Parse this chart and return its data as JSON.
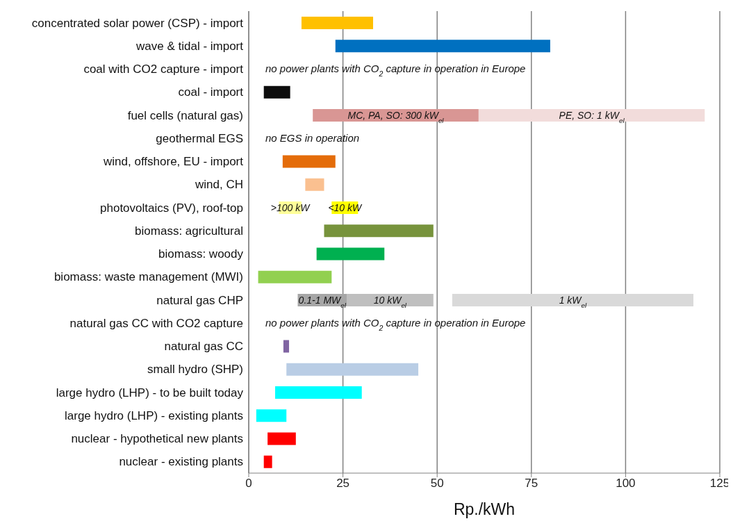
{
  "chart_data": {
    "type": "bar",
    "orientation": "horizontal",
    "xlabel": "Rp./kWh",
    "categories": [
      "concentrated solar power (CSP) - import",
      "wave & tidal - import",
      "coal with CO2 capture - import",
      "coal - import",
      "fuel cells (natural gas)",
      "geothermal EGS",
      "wind, offshore, EU - import",
      "wind, CH",
      "photovoltaics (PV), roof-top",
      "biomass: agricultural",
      "biomass: woody",
      "biomass: waste management (MWI)",
      "natural gas CHP",
      "natural gas CC with CO2 capture",
      "natural gas CC",
      "small hydro (SHP)",
      "large hydro (LHP) - to be built today",
      "large hydro (LHP) - existing plants",
      "nuclear - hypothetical new plants",
      "nuclear - existing plants"
    ],
    "series": [
      {
        "base": [
          14,
          23,
          null,
          4,
          null,
          null,
          9,
          15,
          null,
          20,
          18,
          2.5,
          null,
          null,
          9.2,
          10,
          7,
          2,
          5,
          4
        ],
        "values": [
          19,
          57,
          null,
          7,
          null,
          null,
          14,
          5,
          null,
          29,
          18,
          19.5,
          null,
          null,
          1.5,
          35,
          23,
          8,
          7.5,
          2.2
        ],
        "colors": [
          "#ffc000",
          "#0070c0",
          null,
          "#0d0d0d",
          null,
          null,
          "#e46c0a",
          "#fac090",
          null,
          "#77933c",
          "#00b050",
          "#92d050",
          null,
          null,
          "#8064a2",
          "#b9cde5",
          "#00ffff",
          "#00ffff",
          "#ff0000",
          "#ff0000"
        ]
      },
      {
        "name": "MC, PA, SO: 300 kW$_{el}$",
        "color": "#d99694",
        "base": [
          null,
          null,
          null,
          null,
          17,
          null,
          null,
          null,
          null,
          null,
          null,
          null,
          null,
          null,
          null,
          null,
          null,
          null,
          null,
          null
        ],
        "values": [
          null,
          null,
          null,
          null,
          44,
          null,
          null,
          null,
          null,
          null,
          null,
          null,
          null,
          null,
          null,
          null,
          null,
          null,
          null,
          null
        ]
      },
      {
        "name": "PE, SO: 1 kW$_{el}$",
        "color": "#f2dcdb",
        "base": [
          null,
          null,
          null,
          null,
          61,
          null,
          null,
          null,
          null,
          null,
          null,
          null,
          null,
          null,
          null,
          null,
          null,
          null,
          null,
          null
        ],
        "values": [
          null,
          null,
          null,
          null,
          60,
          null,
          null,
          null,
          null,
          null,
          null,
          null,
          null,
          null,
          null,
          null,
          null,
          null,
          null,
          null
        ]
      },
      {
        "name": ">100 kW",
        "color": "#ffff99",
        "base": [
          null,
          null,
          null,
          null,
          null,
          null,
          null,
          null,
          8,
          null,
          null,
          null,
          null,
          null,
          null,
          null,
          null,
          null,
          null,
          null
        ],
        "values": [
          null,
          null,
          null,
          null,
          null,
          null,
          null,
          null,
          6,
          null,
          null,
          null,
          null,
          null,
          null,
          null,
          null,
          null,
          null,
          null
        ]
      },
      {
        "name": "<10 kW",
        "color": "#ffff00",
        "base": [
          null,
          null,
          null,
          null,
          null,
          null,
          null,
          null,
          22,
          null,
          null,
          null,
          null,
          null,
          null,
          null,
          null,
          null,
          null,
          null
        ],
        "values": [
          null,
          null,
          null,
          null,
          null,
          null,
          null,
          null,
          7,
          null,
          null,
          null,
          null,
          null,
          null,
          null,
          null,
          null,
          null,
          null
        ]
      },
      {
        "name": "0.1-1 MW$_{el}$",
        "color": "#a6a6a6",
        "base": [
          null,
          null,
          null,
          null,
          null,
          null,
          null,
          null,
          null,
          null,
          null,
          null,
          13,
          null,
          null,
          null,
          null,
          null,
          null,
          null
        ],
        "values": [
          null,
          null,
          null,
          null,
          null,
          null,
          null,
          null,
          null,
          null,
          null,
          null,
          13,
          null,
          null,
          null,
          null,
          null,
          null,
          null
        ]
      },
      {
        "name": "10 kW$_{el}$",
        "color": "#bfbfbf",
        "base": [
          null,
          null,
          null,
          null,
          null,
          null,
          null,
          null,
          null,
          null,
          null,
          null,
          26,
          null,
          null,
          null,
          null,
          null,
          null,
          null
        ],
        "values": [
          null,
          null,
          null,
          null,
          null,
          null,
          null,
          null,
          null,
          null,
          null,
          null,
          23,
          null,
          null,
          null,
          null,
          null,
          null,
          null
        ]
      },
      {
        "name": "1 kW$_{el}$",
        "color": "#d9d9d9",
        "base": [
          null,
          null,
          null,
          null,
          null,
          null,
          null,
          null,
          null,
          null,
          null,
          null,
          54,
          null,
          null,
          null,
          null,
          null,
          null,
          null
        ],
        "values": [
          null,
          null,
          null,
          null,
          null,
          null,
          null,
          null,
          null,
          null,
          null,
          null,
          64,
          null,
          null,
          null,
          null,
          null,
          null,
          null
        ]
      }
    ],
    "xlim": [
      0,
      125
    ],
    "xticks": [
      0,
      25,
      50,
      75,
      100,
      125
    ],
    "grid": "x",
    "legend": false,
    "annotations": [
      "no power plants with CO$_{2}$ capture in operation in Europe",
      "no EGS in operation",
      "no power plants with CO$_{2}$ capture in operation in Europe"
    ]
  }
}
